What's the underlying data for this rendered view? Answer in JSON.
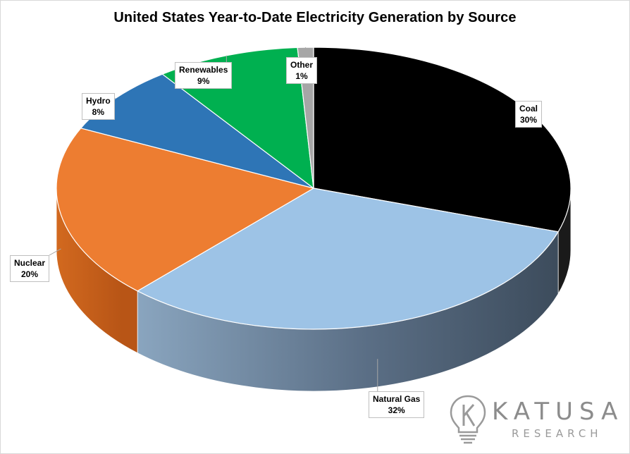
{
  "chart_data": {
    "type": "pie",
    "title": "United States Year-to-Date Electricity Generation by Source",
    "slices": [
      {
        "label": "Coal",
        "value": 30,
        "value_text": "30%",
        "color": "#000000",
        "side_color": "#1a1a1a"
      },
      {
        "label": "Natural Gas",
        "value": 32,
        "value_text": "32%",
        "color": "#9dc3e6",
        "side_color": "#5b7c9c"
      },
      {
        "label": "Nuclear",
        "value": 20,
        "value_text": "20%",
        "color": "#ed7d31",
        "side_color": "#c9621b"
      },
      {
        "label": "Hydro",
        "value": 8,
        "value_text": "8%",
        "color": "#2e75b6",
        "side_color": "#1f5288"
      },
      {
        "label": "Renewables",
        "value": 9,
        "value_text": "9%",
        "color": "#00b050",
        "side_color": "#007a38"
      },
      {
        "label": "Other",
        "value": 1,
        "value_text": "1%",
        "color": "#a6a6a6",
        "side_color": "#7f7f7f"
      }
    ],
    "style": "3d-pie",
    "data_labels": "callouts with category name and percentage"
  },
  "logo": {
    "name": "KATUSA",
    "tagline": "RESEARCH",
    "icon": "lightbulb-k-icon",
    "color": "#8c8c8c"
  }
}
